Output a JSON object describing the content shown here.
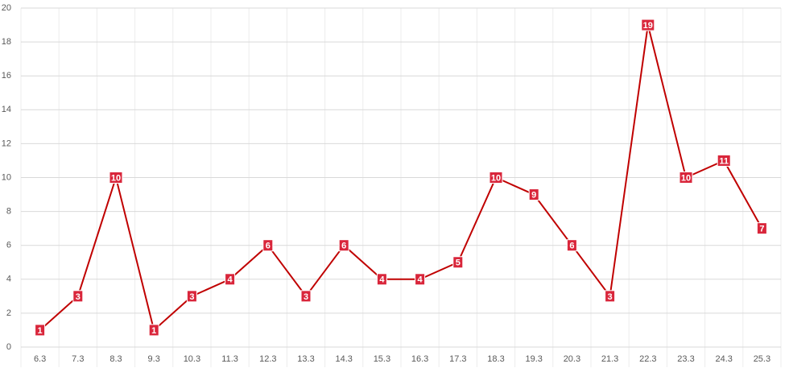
{
  "chart_data": {
    "type": "line",
    "categories": [
      "6.3",
      "7.3",
      "8.3",
      "9.3",
      "10.3",
      "11.3",
      "12.3",
      "13.3",
      "14.3",
      "15.3",
      "16.3",
      "17.3",
      "18.3",
      "19.3",
      "20.3",
      "21.3",
      "22.3",
      "23.3",
      "24.3",
      "25.3"
    ],
    "values": [
      1,
      3,
      10,
      1,
      3,
      4,
      6,
      3,
      6,
      4,
      4,
      5,
      10,
      9,
      6,
      3,
      19,
      10,
      11,
      7
    ],
    "color": "#c00000",
    "marker_color": "#d9263b",
    "ylim": [
      0,
      20
    ],
    "yticks": [
      0,
      2,
      4,
      6,
      8,
      10,
      12,
      14,
      16,
      18,
      20
    ],
    "grid": true
  }
}
